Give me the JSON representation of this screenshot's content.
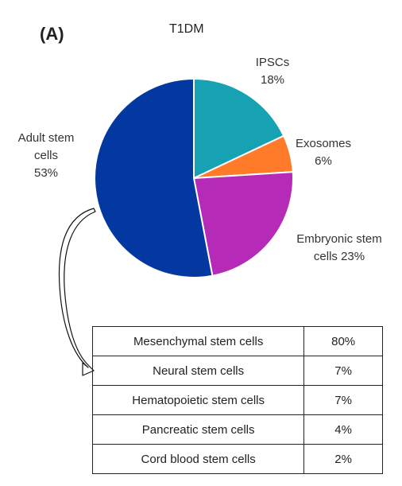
{
  "panel_label": "(A)",
  "chart_data": [
    {
      "type": "pie",
      "title": "T1DM",
      "slices": [
        {
          "label_lines": [
            "IPSCs",
            "18%"
          ],
          "value": 18,
          "color": "#17A2B3"
        },
        {
          "label_lines": [
            "Exosomes",
            "6%"
          ],
          "value": 6,
          "color": "#FF7A29"
        },
        {
          "label_lines": [
            "Embryonic stem",
            "cells 23%"
          ],
          "value": 23,
          "color": "#B52BB8"
        },
        {
          "label_lines": [
            "Adult stem",
            "cells",
            "53%"
          ],
          "value": 53,
          "color": "#02389F"
        }
      ]
    },
    {
      "type": "table",
      "rows": [
        {
          "name": "Mesenchymal stem cells",
          "value": "80%"
        },
        {
          "name": "Neural stem cells",
          "value": "7%"
        },
        {
          "name": "Hematopoietic stem cells",
          "value": "7%"
        },
        {
          "name": "Pancreatic stem cells",
          "value": "4%"
        },
        {
          "name": "Cord blood stem cells",
          "value": "2%"
        }
      ]
    }
  ]
}
